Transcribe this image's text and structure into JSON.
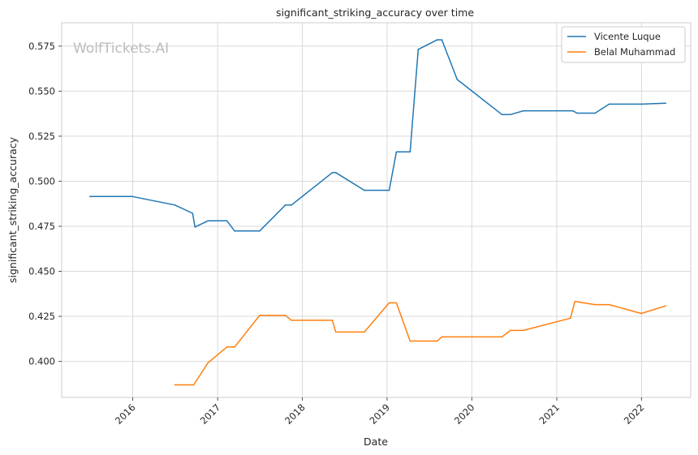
{
  "chart_data": {
    "type": "line",
    "title": "significant_striking_accuracy over time",
    "xlabel": "Date",
    "ylabel": "significant_striking_accuracy",
    "watermark": "WolfTickets.AI",
    "xlim": [
      "2015-03-01",
      "2022-08-01"
    ],
    "ylim": [
      0.38,
      0.588
    ],
    "x_ticks": [
      "2016-01-01",
      "2017-01-01",
      "2018-01-01",
      "2019-01-01",
      "2020-01-01",
      "2021-01-01",
      "2022-01-01"
    ],
    "x_tick_labels": [
      "2016",
      "2017",
      "2018",
      "2019",
      "2020",
      "2021",
      "2022"
    ],
    "y_ticks": [
      0.4,
      0.425,
      0.45,
      0.475,
      0.5,
      0.525,
      0.55,
      0.575
    ],
    "y_tick_labels": [
      "0.400",
      "0.425",
      "0.450",
      "0.475",
      "0.500",
      "0.525",
      "0.550",
      "0.575"
    ],
    "grid": true,
    "legend_position": "top-right",
    "series": [
      {
        "name": "Vicente Luque",
        "color": "#1f77b4",
        "points": [
          [
            "2015-07-01",
            0.4915
          ],
          [
            "2015-12-31",
            0.4915
          ],
          [
            "2016-07-01",
            0.4868
          ],
          [
            "2016-09-15",
            0.4822
          ],
          [
            "2016-09-25",
            0.4746
          ],
          [
            "2016-11-20",
            0.478
          ],
          [
            "2017-02-10",
            0.478
          ],
          [
            "2017-03-15",
            0.4724
          ],
          [
            "2017-07-01",
            0.4724
          ],
          [
            "2017-10-20",
            0.4868
          ],
          [
            "2017-11-15",
            0.4868
          ],
          [
            "2018-05-10",
            0.5048
          ],
          [
            "2018-05-25",
            0.5048
          ],
          [
            "2018-09-25",
            0.495
          ],
          [
            "2019-01-10",
            0.495
          ],
          [
            "2019-02-10",
            0.5163
          ],
          [
            "2019-04-10",
            0.5163
          ],
          [
            "2019-05-15",
            0.5732
          ],
          [
            "2019-08-05",
            0.5785
          ],
          [
            "2019-08-25",
            0.5785
          ],
          [
            "2019-10-30",
            0.5565
          ],
          [
            "2020-05-10",
            0.537
          ],
          [
            "2020-06-15",
            0.537
          ],
          [
            "2020-08-10",
            0.5391
          ],
          [
            "2021-03-10",
            0.5391
          ],
          [
            "2021-03-30",
            0.5378
          ],
          [
            "2021-06-15",
            0.5378
          ],
          [
            "2021-08-15",
            0.5428
          ],
          [
            "2021-12-31",
            0.5428
          ],
          [
            "2022-04-15",
            0.5433
          ]
        ]
      },
      {
        "name": "Belal Muhammad",
        "color": "#ff7f0e",
        "points": [
          [
            "2016-07-01",
            0.387
          ],
          [
            "2016-09-20",
            0.387
          ],
          [
            "2016-11-20",
            0.3992
          ],
          [
            "2017-02-10",
            0.408
          ],
          [
            "2017-03-15",
            0.408
          ],
          [
            "2017-07-01",
            0.4255
          ],
          [
            "2017-10-20",
            0.4255
          ],
          [
            "2017-11-15",
            0.4228
          ],
          [
            "2018-05-10",
            0.4228
          ],
          [
            "2018-05-25",
            0.4163
          ],
          [
            "2018-09-25",
            0.4163
          ],
          [
            "2019-01-10",
            0.4325
          ],
          [
            "2019-02-10",
            0.4325
          ],
          [
            "2019-04-10",
            0.4113
          ],
          [
            "2019-08-05",
            0.4113
          ],
          [
            "2019-08-25",
            0.4136
          ],
          [
            "2020-05-10",
            0.4136
          ],
          [
            "2020-06-15",
            0.4172
          ],
          [
            "2020-08-10",
            0.4172
          ],
          [
            "2021-03-01",
            0.424
          ],
          [
            "2021-03-20",
            0.4333
          ],
          [
            "2021-06-15",
            0.4315
          ],
          [
            "2021-08-15",
            0.4315
          ],
          [
            "2021-12-31",
            0.4266
          ],
          [
            "2022-04-15",
            0.4308
          ]
        ]
      }
    ]
  }
}
